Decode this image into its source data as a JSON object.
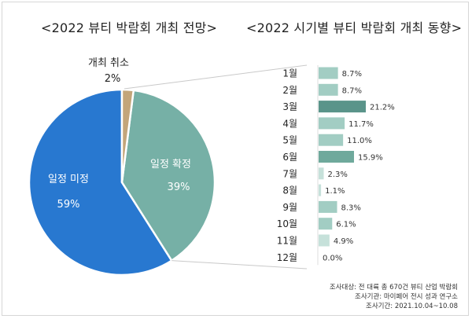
{
  "colors": {
    "pie_undecided": "#2878d0",
    "pie_confirmed": "#76b0a6",
    "pie_cancel": "#c3a57a",
    "bar_normal": "#a2cdc3",
    "bar_high": "#6fa99c",
    "bar_dark": "#5a948a",
    "bar_low": "#c6e1da",
    "leader_line": "#c9c9c9"
  },
  "footer": {
    "line1": "조사대상: 전 대륙 총 670건 뷰티 산업 박람회",
    "line2": "조사기관: 마이페어 전시 성과 연구소",
    "line3": "조사기간: 2021.10.04~10.08"
  },
  "chart_data": [
    {
      "type": "pie",
      "title": "<2022 뷰티 박람회 개최 전망>",
      "categories": [
        "일정 미정",
        "일정 확정",
        "개최 취소"
      ],
      "values": [
        59,
        39,
        2
      ],
      "value_labels": [
        "59%",
        "39%",
        "2%"
      ],
      "label_cancel_name": "개최 취소"
    },
    {
      "type": "bar",
      "orientation": "horizontal",
      "title": "<2022 시기별 뷰티 박람회 개최  동향>",
      "categories": [
        "1월",
        "2월",
        "3월",
        "4월",
        "5월",
        "6월",
        "7월",
        "8월",
        "9월",
        "10월",
        "11월",
        "12월"
      ],
      "values": [
        8.7,
        8.7,
        21.2,
        11.7,
        11.0,
        15.9,
        2.3,
        1.1,
        8.3,
        6.1,
        4.9,
        0.0
      ],
      "value_labels": [
        "8.7%",
        "8.7%",
        "21.2%",
        "11.7%",
        "11.0%",
        "15.9%",
        "2.3%",
        "1.1%",
        "8.3%",
        "6.1%",
        "4.9%",
        "0.0%"
      ],
      "xlim": [
        0,
        25
      ]
    }
  ]
}
